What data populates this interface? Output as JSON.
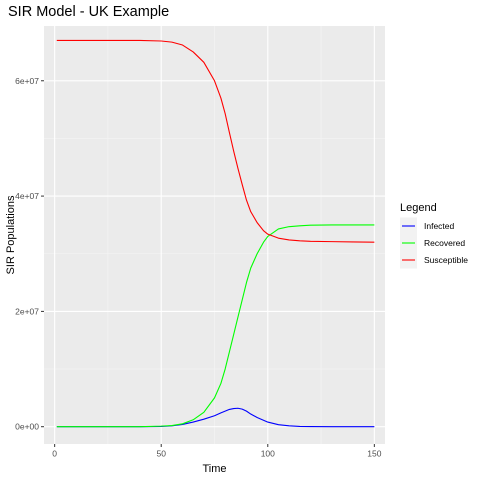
{
  "chart_data": {
    "type": "line",
    "title": "SIR Model - UK Example",
    "xlabel": "Time",
    "ylabel": "SIR Populations",
    "xlim": [
      -5,
      155
    ],
    "ylim": [
      -3000000,
      69500000
    ],
    "x_ticks": [
      0,
      50,
      100,
      150
    ],
    "x_tick_labels": [
      "0",
      "50",
      "100",
      "150"
    ],
    "y_ticks": [
      0,
      20000000,
      40000000,
      60000000
    ],
    "y_tick_labels": [
      "0e+00",
      "2e+07",
      "4e+07",
      "6e+07"
    ],
    "grid": true,
    "legend": {
      "title": "Legend",
      "position": "right"
    },
    "series": [
      {
        "name": "Infected",
        "color": "#0000ff",
        "x": [
          1,
          10,
          20,
          30,
          40,
          50,
          55,
          60,
          65,
          70,
          75,
          78,
          80,
          82,
          84,
          86,
          88,
          90,
          92,
          95,
          100,
          105,
          110,
          115,
          120,
          130,
          140,
          150
        ],
        "y": [
          0,
          0,
          0,
          0,
          10000,
          50000,
          150000,
          400000,
          800000,
          1300000,
          1900000,
          2400000,
          2700000,
          3000000,
          3150000,
          3200000,
          3050000,
          2700000,
          2200000,
          1600000,
          800000,
          350000,
          150000,
          50000,
          20000,
          0,
          0,
          0
        ]
      },
      {
        "name": "Recovered",
        "color": "#00ff00",
        "x": [
          1,
          10,
          20,
          30,
          40,
          50,
          55,
          60,
          65,
          70,
          75,
          78,
          80,
          82,
          84,
          86,
          88,
          90,
          92,
          95,
          98,
          100,
          105,
          110,
          115,
          120,
          130,
          140,
          150
        ],
        "y": [
          0,
          0,
          0,
          0,
          0,
          100000,
          200000,
          500000,
          1200000,
          2500000,
          5000000,
          7500000,
          10000000,
          13000000,
          16000000,
          19000000,
          22000000,
          25000000,
          27500000,
          30000000,
          32000000,
          33000000,
          34300000,
          34700000,
          34850000,
          34950000,
          35000000,
          35000000,
          35000000
        ]
      },
      {
        "name": "Susceptible",
        "color": "#ff0000",
        "x": [
          1,
          10,
          20,
          30,
          40,
          50,
          55,
          60,
          65,
          70,
          75,
          78,
          80,
          82,
          84,
          86,
          88,
          90,
          92,
          95,
          98,
          100,
          105,
          110,
          115,
          120,
          130,
          140,
          150
        ],
        "y": [
          67000000,
          67000000,
          67000000,
          67000000,
          66990000,
          66900000,
          66700000,
          66200000,
          65000000,
          63200000,
          60000000,
          57000000,
          54300000,
          51000000,
          47800000,
          44800000,
          42000000,
          39300000,
          37300000,
          35400000,
          34000000,
          33400000,
          32700000,
          32400000,
          32250000,
          32150000,
          32100000,
          32050000,
          32000000
        ]
      }
    ]
  }
}
